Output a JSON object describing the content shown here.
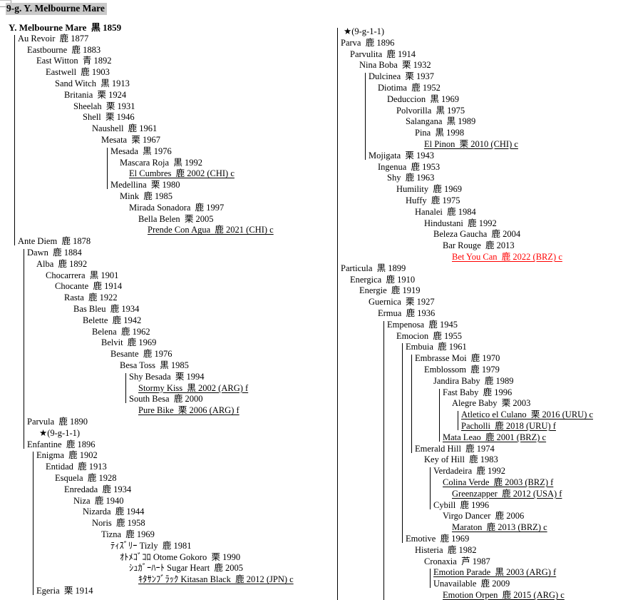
{
  "title": "9-g. Y. Melbourne Mare",
  "colors": {
    "text": "#000000",
    "red_entry": "#ff0000",
    "title_highlight": "#c9c9c9",
    "tree_line": "#000000"
  },
  "columns": [
    {
      "id": "left",
      "rows": [
        {
          "d": 0,
          "n": "Y. Melbourne Mare",
          "c": "黒",
          "y": "1859",
          "b": true
        },
        {
          "d": 1,
          "n": "Au Revoir",
          "c": "鹿",
          "y": "1877"
        },
        {
          "d": 2,
          "n": "Eastbourne",
          "c": "鹿",
          "y": "1883"
        },
        {
          "d": 3,
          "n": "East Witton",
          "c": "青",
          "y": "1892"
        },
        {
          "d": 4,
          "n": "Eastwell",
          "c": "鹿",
          "y": "1903"
        },
        {
          "d": 5,
          "n": "Sand Witch",
          "c": "黒",
          "y": "1913"
        },
        {
          "d": 6,
          "n": "Britania",
          "c": "栗",
          "y": "1924"
        },
        {
          "d": 7,
          "n": "Sheelah",
          "c": "栗",
          "y": "1931"
        },
        {
          "d": 8,
          "n": "Shell",
          "c": "栗",
          "y": "1946"
        },
        {
          "d": 9,
          "n": "Naushell",
          "c": "鹿",
          "y": "1961"
        },
        {
          "d": 10,
          "n": "Mesata",
          "c": "栗",
          "y": "1967"
        },
        {
          "d": 11,
          "n": "Mesada",
          "c": "黒",
          "y": "1976"
        },
        {
          "d": 12,
          "n": "Mascara Roja",
          "c": "黒",
          "y": "1992"
        },
        {
          "d": 13,
          "n": "El Cumbres",
          "c": "鹿",
          "y": "2002 (CHI) c",
          "u": true
        },
        {
          "d": 11,
          "n": "Medellina",
          "c": "栗",
          "y": "1980"
        },
        {
          "d": 12,
          "n": "Mink",
          "c": "鹿",
          "y": "1985"
        },
        {
          "d": 13,
          "n": "Mirada Sonadora",
          "c": "鹿",
          "y": "1997"
        },
        {
          "d": 14,
          "n": "Bella Belen",
          "c": "栗",
          "y": "2005"
        },
        {
          "d": 15,
          "n": "Prende Con Agua",
          "c": "鹿",
          "y": "2021 (CHI) c",
          "u": true
        },
        {
          "d": 1,
          "n": "Ante Diem",
          "c": "鹿",
          "y": "1878"
        },
        {
          "d": 2,
          "n": "Dawn",
          "c": "鹿",
          "y": "1884"
        },
        {
          "d": 3,
          "n": "Alba",
          "c": "鹿",
          "y": "1892"
        },
        {
          "d": 4,
          "n": "Chocarrera",
          "c": "黒",
          "y": "1901"
        },
        {
          "d": 5,
          "n": "Chocante",
          "c": "鹿",
          "y": "1914"
        },
        {
          "d": 6,
          "n": "Rasta",
          "c": "鹿",
          "y": "1922"
        },
        {
          "d": 7,
          "n": "Bas Bleu",
          "c": "鹿",
          "y": "1934"
        },
        {
          "d": 8,
          "n": "Belette",
          "c": "鹿",
          "y": "1942"
        },
        {
          "d": 9,
          "n": "Belena",
          "c": "鹿",
          "y": "1962"
        },
        {
          "d": 10,
          "n": "Belvit",
          "c": "鹿",
          "y": "1969"
        },
        {
          "d": 11,
          "n": "Besante",
          "c": "鹿",
          "y": "1976"
        },
        {
          "d": 12,
          "n": "Besa Toss",
          "c": "黒",
          "y": "1985"
        },
        {
          "d": 13,
          "n": "Shy Besada",
          "c": "栗",
          "y": "1994"
        },
        {
          "d": 14,
          "n": "Stormy Kiss",
          "c": "黒",
          "y": "2002 (ARG) f",
          "u": true
        },
        {
          "d": 13,
          "n": "South Besa",
          "c": "鹿",
          "y": "2000"
        },
        {
          "d": 14,
          "n": "Pure Bike",
          "c": "栗",
          "y": "2006 (ARG) f",
          "u": true
        },
        {
          "d": 2,
          "n": "Parvula",
          "c": "鹿",
          "y": "1890"
        },
        {
          "d": 3,
          "n": "★(9-g-1-1)",
          "m": true
        },
        {
          "d": 2,
          "n": "Enfantine",
          "c": "鹿",
          "y": "1896"
        },
        {
          "d": 3,
          "n": "Enigma",
          "c": "鹿",
          "y": "1902"
        },
        {
          "d": 4,
          "n": "Entidad",
          "c": "鹿",
          "y": "1913"
        },
        {
          "d": 5,
          "n": "Esquela",
          "c": "鹿",
          "y": "1928"
        },
        {
          "d": 6,
          "n": "Enredada",
          "c": "鹿",
          "y": "1934"
        },
        {
          "d": 7,
          "n": "Niza",
          "c": "鹿",
          "y": "1940"
        },
        {
          "d": 8,
          "n": "Nizarda",
          "c": "鹿",
          "y": "1944"
        },
        {
          "d": 9,
          "n": "Noris",
          "c": "鹿",
          "y": "1958"
        },
        {
          "d": 10,
          "n": "Tizna",
          "c": "鹿",
          "y": "1969"
        },
        {
          "d": 11,
          "n": "ﾃｨｽﾞﾘｰ Tizly",
          "c": "鹿",
          "y": "1981"
        },
        {
          "d": 12,
          "n": "ｵﾄﾒｺﾞｺﾛ Otome Gokoro",
          "c": "栗",
          "y": "1990"
        },
        {
          "d": 13,
          "n": "ｼｭｶﾞｰﾊｰﾄ Sugar Heart",
          "c": "鹿",
          "y": "2005"
        },
        {
          "d": 14,
          "n": "ｷﾀｻﾝﾌﾞﾗｯｸ Kitasan Black",
          "c": "鹿",
          "y": "2012 (JPN) c",
          "u": true
        },
        {
          "d": 3,
          "n": "Egeria",
          "c": "栗",
          "y": "1914"
        }
      ],
      "connectors": [
        {
          "parent_depth": 0,
          "from": 1,
          "to": 19
        },
        {
          "parent_depth": 10,
          "from": 11,
          "to": 14
        },
        {
          "parent_depth": 12,
          "from": 31,
          "to": 33
        },
        {
          "parent_depth": 1,
          "from": 20,
          "to": 37
        },
        {
          "parent_depth": 2,
          "from": 38,
          "to": 50
        }
      ]
    },
    {
      "id": "right",
      "rows": [
        {
          "d": 0,
          "n": "★(9-g-1-1)",
          "m": true
        },
        {
          "d": 0,
          "n": "Parva",
          "c": "鹿",
          "y": "1896"
        },
        {
          "d": 1,
          "n": "Parvulita",
          "c": "鹿",
          "y": "1914"
        },
        {
          "d": 2,
          "n": "Nina Boba",
          "c": "栗",
          "y": "1932"
        },
        {
          "d": 3,
          "n": "Dulcinea",
          "c": "栗",
          "y": "1937"
        },
        {
          "d": 4,
          "n": "Diotima",
          "c": "鹿",
          "y": "1952"
        },
        {
          "d": 5,
          "n": "Deduccion",
          "c": "黒",
          "y": "1969"
        },
        {
          "d": 6,
          "n": "Polvorilla",
          "c": "黒",
          "y": "1975"
        },
        {
          "d": 7,
          "n": "Salangana",
          "c": "黒",
          "y": "1989"
        },
        {
          "d": 8,
          "n": "Pina",
          "c": "黒",
          "y": "1998"
        },
        {
          "d": 9,
          "n": "El Pinon",
          "c": "栗",
          "y": "2010 (CHI) c",
          "u": true
        },
        {
          "d": 3,
          "n": "Mojigata",
          "c": "栗",
          "y": "1943"
        },
        {
          "d": 4,
          "n": "Ingenua",
          "c": "鹿",
          "y": "1953"
        },
        {
          "d": 5,
          "n": "Shy",
          "c": "鹿",
          "y": "1963"
        },
        {
          "d": 6,
          "n": "Humility",
          "c": "鹿",
          "y": "1969"
        },
        {
          "d": 7,
          "n": "Huffy",
          "c": "鹿",
          "y": "1975"
        },
        {
          "d": 8,
          "n": "Hanalei",
          "c": "鹿",
          "y": "1984"
        },
        {
          "d": 9,
          "n": "Hindustani",
          "c": "鹿",
          "y": "1992"
        },
        {
          "d": 10,
          "n": "Beleza Gaucha",
          "c": "鹿",
          "y": "2004"
        },
        {
          "d": 11,
          "n": "Bar Rouge",
          "c": "鹿",
          "y": "2013"
        },
        {
          "d": 12,
          "n": "Bet You Can",
          "c": "鹿",
          "y": "2022 (BRZ) c",
          "u": true,
          "red": true
        },
        {
          "d": 0,
          "n": "Particula",
          "c": "黒",
          "y": "1899"
        },
        {
          "d": 1,
          "n": "Energica",
          "c": "鹿",
          "y": "1910"
        },
        {
          "d": 2,
          "n": "Energie",
          "c": "鹿",
          "y": "1919"
        },
        {
          "d": 3,
          "n": "Guernica",
          "c": "栗",
          "y": "1927"
        },
        {
          "d": 4,
          "n": "Ermua",
          "c": "鹿",
          "y": "1936"
        },
        {
          "d": 5,
          "n": "Empenosa",
          "c": "鹿",
          "y": "1945"
        },
        {
          "d": 6,
          "n": "Emocion",
          "c": "鹿",
          "y": "1955"
        },
        {
          "d": 7,
          "n": "Embuia",
          "c": "鹿",
          "y": "1961"
        },
        {
          "d": 8,
          "n": "Embrasse Moi",
          "c": "鹿",
          "y": "1970"
        },
        {
          "d": 9,
          "n": "Emblossom",
          "c": "鹿",
          "y": "1979"
        },
        {
          "d": 10,
          "n": "Jandira Baby",
          "c": "鹿",
          "y": "1989"
        },
        {
          "d": 11,
          "n": "Fast Baby",
          "c": "鹿",
          "y": "1996"
        },
        {
          "d": 12,
          "n": "Alegre Baby",
          "c": "栗",
          "y": "2003"
        },
        {
          "d": 13,
          "n": "Atletico el Culano",
          "c": "栗",
          "y": "2016 (URU) c",
          "u": true
        },
        {
          "d": 13,
          "n": "Pacholli",
          "c": "鹿",
          "y": "2018 (URU) f",
          "u": true
        },
        {
          "d": 11,
          "n": "Mata Leao",
          "c": "鹿",
          "y": "2001 (BRZ) c",
          "u": true
        },
        {
          "d": 8,
          "n": "Emerald Hill",
          "c": "鹿",
          "y": "1974"
        },
        {
          "d": 9,
          "n": "Key of Hill",
          "c": "鹿",
          "y": "1983"
        },
        {
          "d": 10,
          "n": "Verdadeira",
          "c": "鹿",
          "y": "1992"
        },
        {
          "d": 11,
          "n": "Colina Verde",
          "c": "鹿",
          "y": "2003 (BRZ) f",
          "u": true
        },
        {
          "d": 12,
          "n": "Greenzapper",
          "c": "鹿",
          "y": "2012 (USA) f",
          "u": true
        },
        {
          "d": 10,
          "n": "Cybill",
          "c": "鹿",
          "y": "1996"
        },
        {
          "d": 11,
          "n": "Virgo Dancer",
          "c": "鹿",
          "y": "2006"
        },
        {
          "d": 12,
          "n": "Maraton",
          "c": "鹿",
          "y": "2013 (BRZ) c",
          "u": true
        },
        {
          "d": 7,
          "n": "Emotive",
          "c": "鹿",
          "y": "1969"
        },
        {
          "d": 8,
          "n": "Histeria",
          "c": "鹿",
          "y": "1982"
        },
        {
          "d": 9,
          "n": "Cronaxia",
          "c": "芦",
          "y": "1987"
        },
        {
          "d": 10,
          "n": "Emotion Parade",
          "c": "黒",
          "y": "2003 (ARG) f",
          "u": true
        },
        {
          "d": 10,
          "n": "Unavailable",
          "c": "鹿",
          "y": "2009"
        },
        {
          "d": 11,
          "n": "Emotion Orpen",
          "c": "鹿",
          "y": "2015 (ARG) c",
          "u": true
        }
      ],
      "connectors": [
        {
          "parent_depth": -1,
          "from": 0,
          "open": true
        },
        {
          "parent_depth": 2,
          "from": 4,
          "to": 11
        },
        {
          "parent_depth": 4,
          "from": 26,
          "open": true
        },
        {
          "parent_depth": 6,
          "from": 28,
          "to": 45
        },
        {
          "parent_depth": 7,
          "from": 29,
          "to": 37
        },
        {
          "parent_depth": 10,
          "from": 32,
          "to": 36
        },
        {
          "parent_depth": 12,
          "from": 34,
          "to": 35
        },
        {
          "parent_depth": 9,
          "from": 39,
          "to": 42
        },
        {
          "parent_depth": 9,
          "from": 48,
          "to": 49
        }
      ]
    }
  ]
}
